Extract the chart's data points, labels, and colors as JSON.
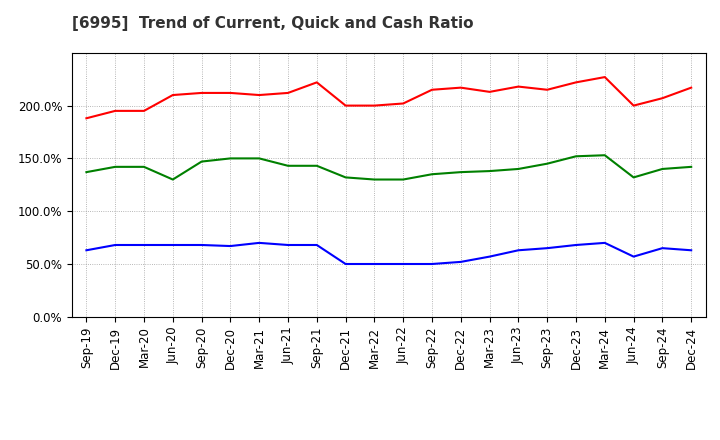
{
  "title": "[6995]  Trend of Current, Quick and Cash Ratio",
  "x_labels": [
    "Sep-19",
    "Dec-19",
    "Mar-20",
    "Jun-20",
    "Sep-20",
    "Dec-20",
    "Mar-21",
    "Jun-21",
    "Sep-21",
    "Dec-21",
    "Mar-22",
    "Jun-22",
    "Sep-22",
    "Dec-22",
    "Mar-23",
    "Jun-23",
    "Sep-23",
    "Dec-23",
    "Mar-24",
    "Jun-24",
    "Sep-24",
    "Dec-24"
  ],
  "current_ratio": [
    1.88,
    1.95,
    1.95,
    2.1,
    2.12,
    2.12,
    2.1,
    2.12,
    2.22,
    2.0,
    2.0,
    2.02,
    2.15,
    2.17,
    2.13,
    2.18,
    2.15,
    2.22,
    2.27,
    2.0,
    2.07,
    2.17
  ],
  "quick_ratio": [
    1.37,
    1.42,
    1.42,
    1.3,
    1.47,
    1.5,
    1.5,
    1.43,
    1.43,
    1.32,
    1.3,
    1.3,
    1.35,
    1.37,
    1.38,
    1.4,
    1.45,
    1.52,
    1.53,
    1.32,
    1.4,
    1.42
  ],
  "cash_ratio": [
    0.63,
    0.68,
    0.68,
    0.68,
    0.68,
    0.67,
    0.7,
    0.68,
    0.68,
    0.5,
    0.5,
    0.5,
    0.5,
    0.52,
    0.57,
    0.63,
    0.65,
    0.68,
    0.7,
    0.57,
    0.65,
    0.63
  ],
  "current_color": "#FF0000",
  "quick_color": "#008000",
  "cash_color": "#0000FF",
  "ylim": [
    0.0,
    2.5
  ],
  "yticks": [
    0.0,
    0.5,
    1.0,
    1.5,
    2.0
  ],
  "ytick_labels": [
    "0.0%",
    "50.0%",
    "100.0%",
    "150.0%",
    "200.0%"
  ],
  "background_color": "#FFFFFF",
  "grid_color": "#888888",
  "title_fontsize": 11,
  "tick_fontsize": 8.5,
  "linewidth": 1.5
}
